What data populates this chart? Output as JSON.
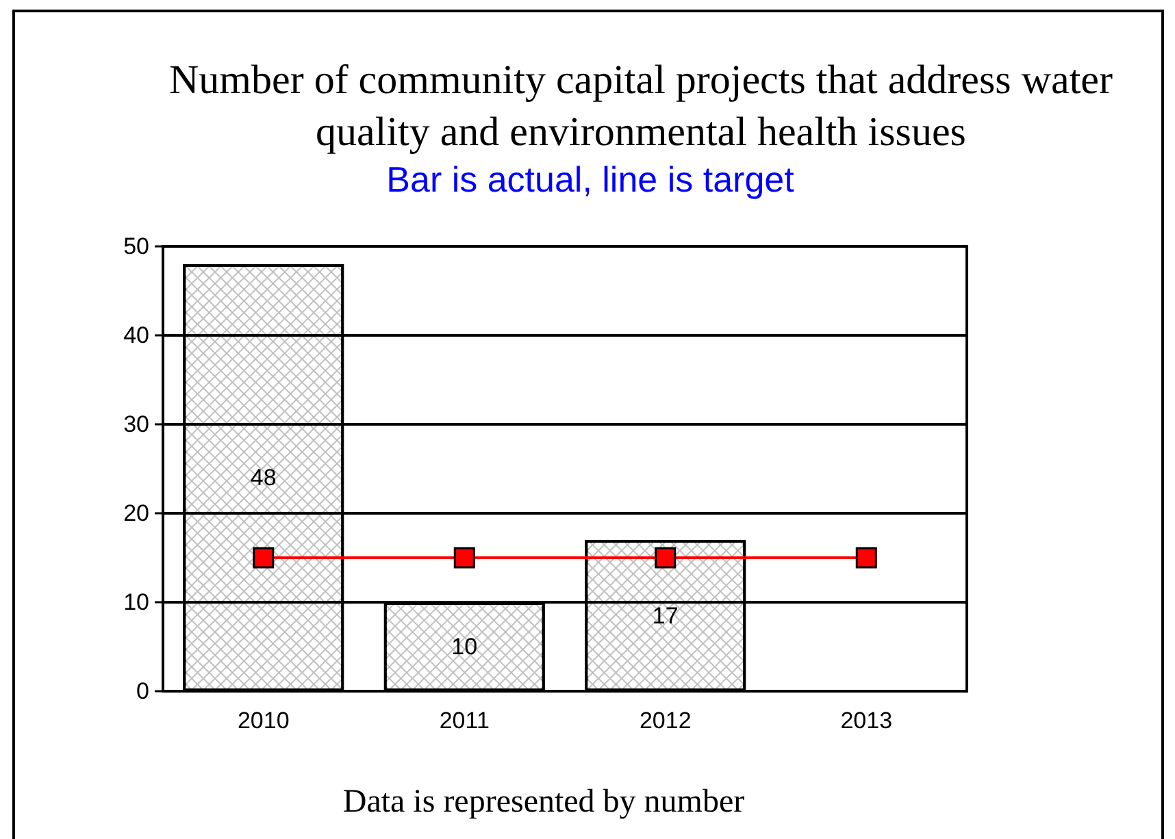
{
  "chart_data": {
    "type": "bar",
    "title": "Number of community capital projects that address water quality and environmental health issues",
    "subtitle": "Bar is actual, line is target",
    "annotations": [
      "Data is represented by number"
    ],
    "categories": [
      "2010",
      "2011",
      "2012",
      "2013"
    ],
    "series": [
      {
        "color": "#c0c0c0",
        "values": [
          48,
          10,
          17,
          null
        ],
        "value_labels": [
          "48",
          "10",
          "17",
          null
        ]
      },
      {
        "type": "line",
        "color": "#ff0000",
        "values": [
          15,
          15,
          15,
          15
        ]
      }
    ],
    "ylim": [
      0,
      50
    ],
    "yticks": [
      0,
      10,
      20,
      30,
      40,
      50
    ],
    "grid": "y",
    "marker": "square",
    "line_style": "solid"
  }
}
